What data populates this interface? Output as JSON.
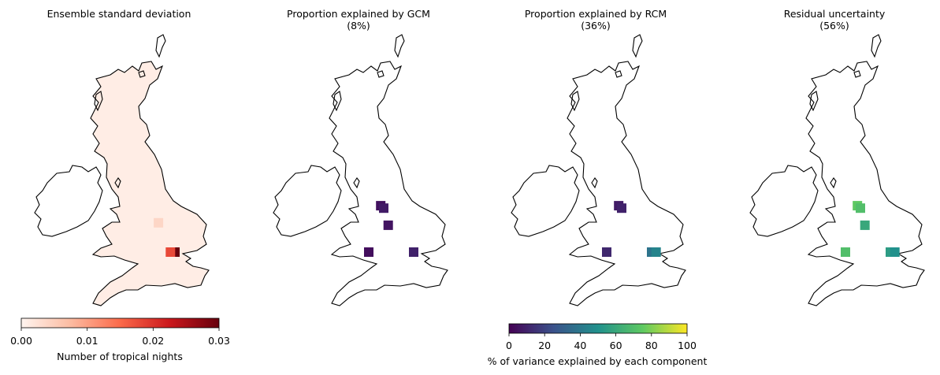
{
  "chart_data": [
    {
      "type": "heatmap",
      "title": "Ensemble standard deviation",
      "subtitle": "",
      "colormap": "Reds",
      "colorbar": {
        "label": "Number of tropical nights",
        "range": [
          0,
          0.03
        ],
        "ticks": [
          "0.00",
          "0.01",
          "0.02",
          "0.03"
        ]
      },
      "cells": [
        {
          "lon": -0.2,
          "lat": 51.5,
          "value": 0.03
        },
        {
          "lon": -0.5,
          "lat": 51.5,
          "value": 0.018
        },
        {
          "lon": -1.3,
          "lat": 52.7,
          "value": 0.004
        }
      ],
      "background_value": 0.001
    },
    {
      "type": "heatmap",
      "title": "Proportion explained by GCM",
      "subtitle": "(8%)",
      "colormap": "viridis",
      "colorbar_ref": "shared",
      "cells": [
        {
          "lon": -2.4,
          "lat": 53.4,
          "value": 5
        },
        {
          "lon": -2.2,
          "lat": 53.3,
          "value": 8
        },
        {
          "lon": -1.9,
          "lat": 52.6,
          "value": 6
        },
        {
          "lon": -3.2,
          "lat": 51.5,
          "value": 4
        },
        {
          "lon": -0.2,
          "lat": 51.5,
          "value": 10
        }
      ]
    },
    {
      "type": "heatmap",
      "title": "Proportion explained by RCM",
      "subtitle": "(36%)",
      "colormap": "viridis",
      "colorbar_ref": "shared",
      "cells": [
        {
          "lon": -2.4,
          "lat": 53.4,
          "value": 8
        },
        {
          "lon": -2.2,
          "lat": 53.3,
          "value": 10
        },
        {
          "lon": -3.2,
          "lat": 51.5,
          "value": 12
        },
        {
          "lon": -0.2,
          "lat": 51.5,
          "value": 38
        },
        {
          "lon": 0.1,
          "lat": 51.5,
          "value": 45
        }
      ]
    },
    {
      "type": "heatmap",
      "title": "Residual uncertainty",
      "subtitle": "(56%)",
      "colormap": "viridis",
      "colorbar_ref": "shared",
      "cells": [
        {
          "lon": -2.4,
          "lat": 53.4,
          "value": 75
        },
        {
          "lon": -2.2,
          "lat": 53.3,
          "value": 70
        },
        {
          "lon": -1.9,
          "lat": 52.6,
          "value": 60
        },
        {
          "lon": -3.2,
          "lat": 51.5,
          "value": 70
        },
        {
          "lon": -0.2,
          "lat": 51.5,
          "value": 55
        },
        {
          "lon": 0.1,
          "lat": 51.5,
          "value": 50
        }
      ]
    }
  ],
  "shared_colorbar": {
    "label": "% of variance explained by each component",
    "range": [
      0,
      100
    ],
    "ticks": [
      "0",
      "20",
      "40",
      "60",
      "80",
      "100"
    ]
  }
}
